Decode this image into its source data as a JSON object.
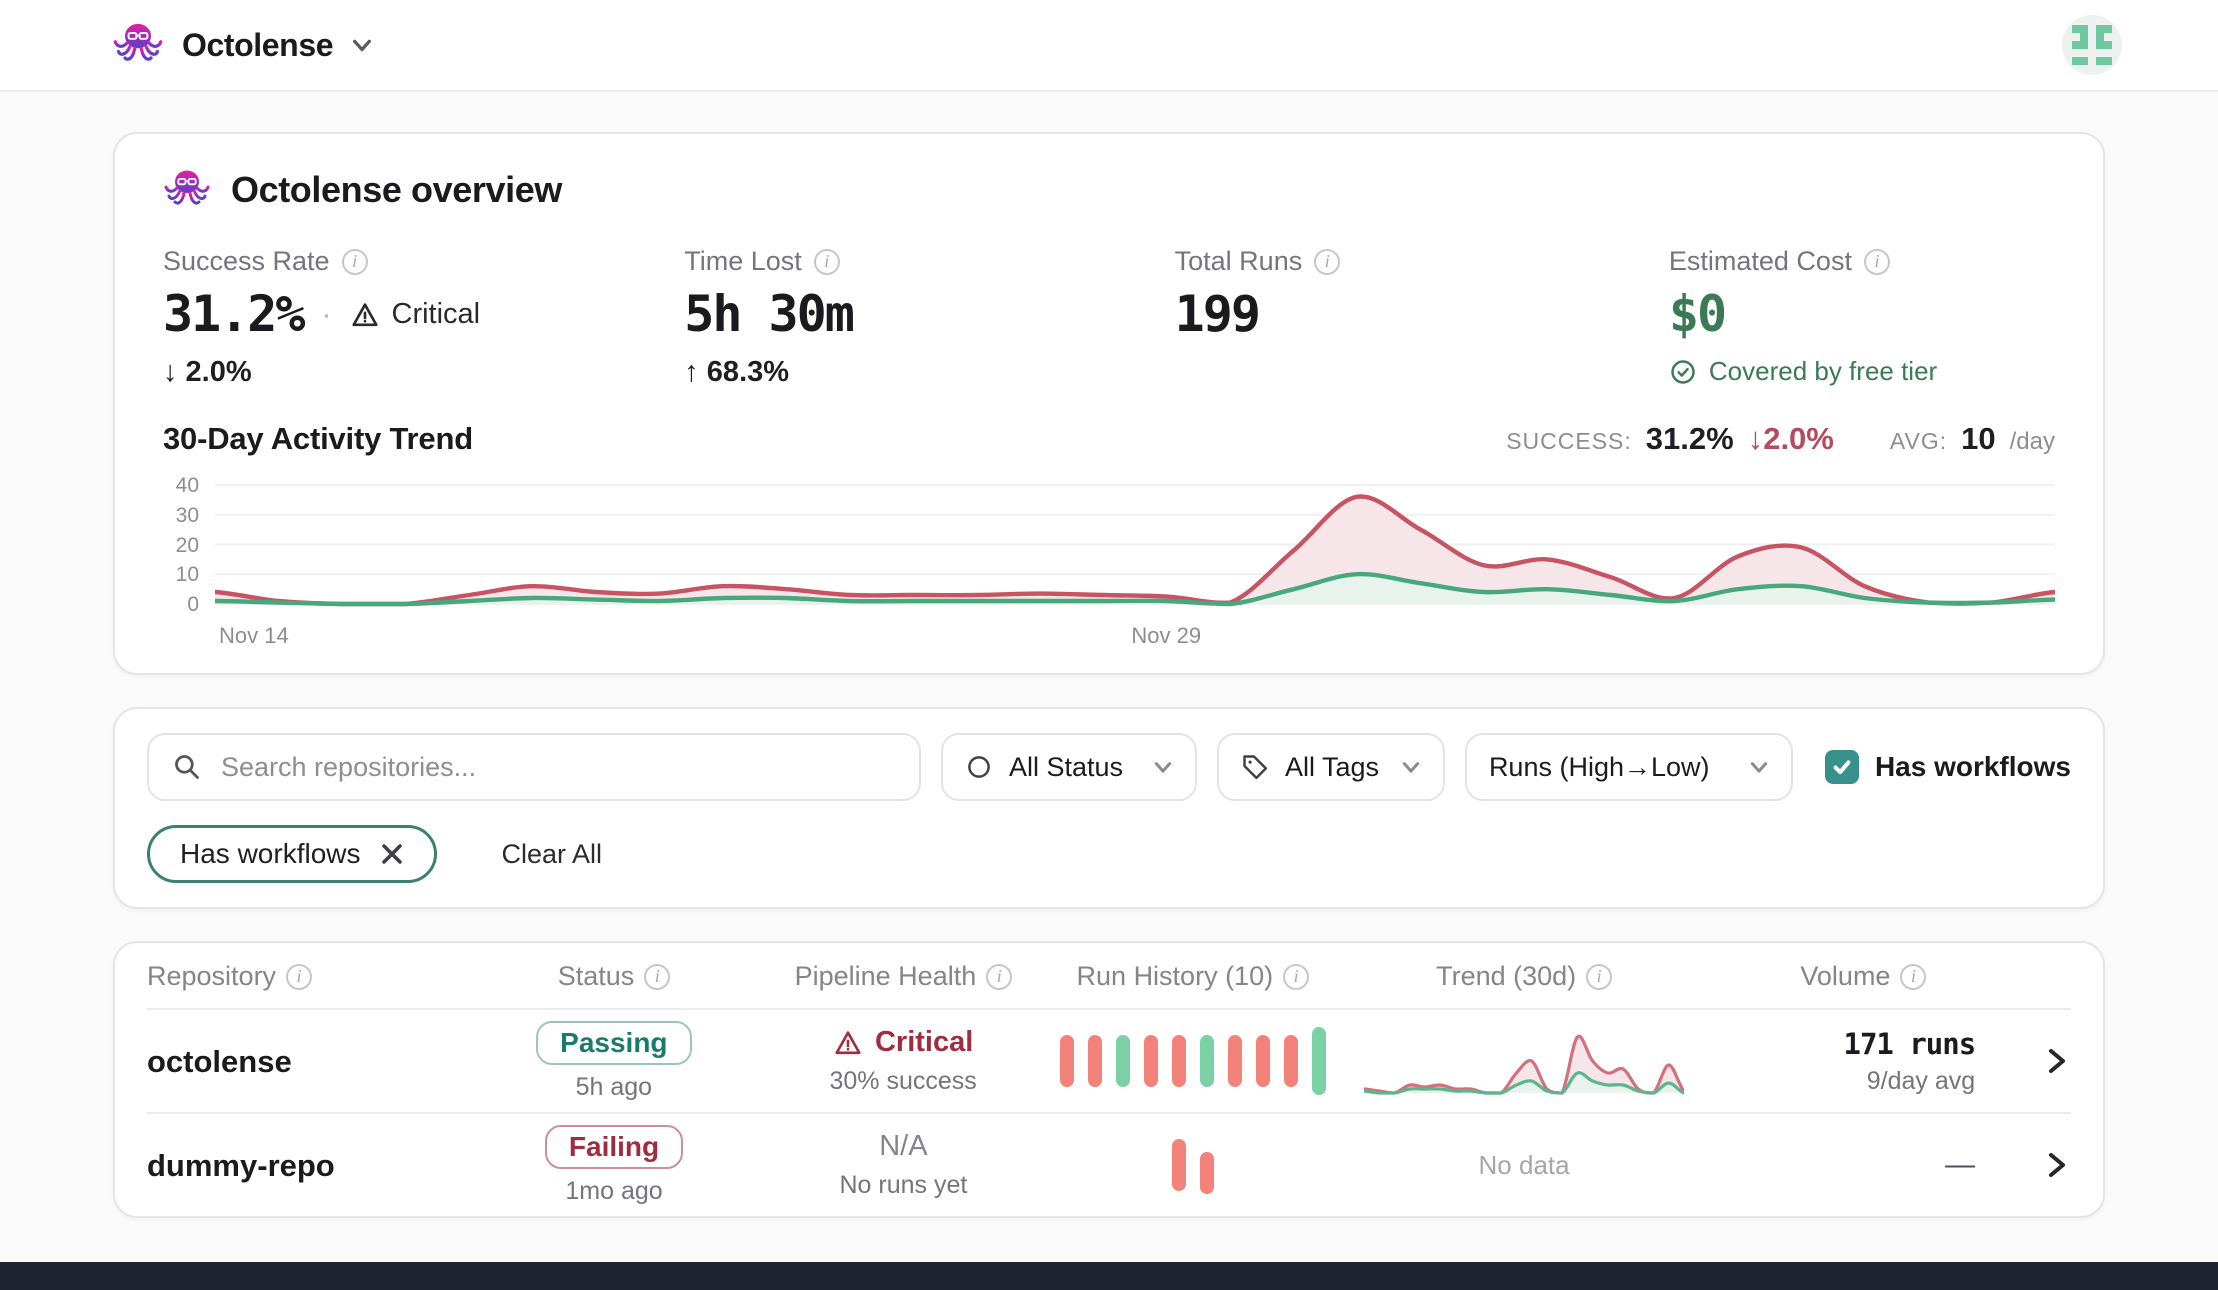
{
  "header": {
    "app_name": "Octolense",
    "avatar_pattern": [
      "11011",
      "01010",
      "11011",
      "00000",
      "11011"
    ]
  },
  "overview": {
    "title": "Octolense overview",
    "stats": [
      {
        "label": "Success Rate",
        "value": "31.2%",
        "separator": "·",
        "badge": "Critical",
        "delta": "↓ 2.0%"
      },
      {
        "label": "Time Lost",
        "value": "5h 30m",
        "delta": "↑ 68.3%"
      },
      {
        "label": "Total Runs",
        "value": "199"
      },
      {
        "label": "Estimated Cost",
        "value": "$0",
        "note": "Covered by free tier"
      }
    ],
    "trend_header": {
      "title": "30-Day Activity Trend",
      "success_label": "SUCCESS:",
      "success_value": "31.2%",
      "success_delta": "↓2.0%",
      "avg_label": "AVG:",
      "avg_value": "10",
      "avg_unit": "/day"
    }
  },
  "chart_data": [
    {
      "id": "main-trend",
      "type": "area",
      "title": "30-Day Activity Trend",
      "days": 30,
      "ylim": [
        0,
        40
      ],
      "y_ticks": [
        0,
        10,
        20,
        30,
        40
      ],
      "grid": true,
      "legend_position": "none",
      "x_tick_labels": [
        {
          "label": "Nov 14",
          "day": 0
        },
        {
          "label": "Nov 29",
          "day": 15
        }
      ],
      "series": [
        {
          "name": "failed-runs",
          "color": "#c65463",
          "fill": "#f7e6e9",
          "values": [
            4,
            1,
            0,
            0,
            3,
            6,
            4,
            3.5,
            6,
            5,
            3,
            3,
            3,
            3.5,
            3,
            2.5,
            0.5,
            18,
            36,
            25,
            13,
            15,
            9,
            2,
            16,
            19,
            6,
            0.5,
            0.5,
            4
          ]
        },
        {
          "name": "successful-runs",
          "color": "#47a87c",
          "fill": "#e7f3ec",
          "values": [
            1,
            0.5,
            0,
            0,
            1,
            2,
            1.5,
            1,
            2,
            2,
            1,
            1,
            1,
            1,
            1,
            1,
            0,
            5,
            10,
            7,
            4,
            5,
            3,
            1,
            5,
            6,
            2,
            0.5,
            0.5,
            1.5
          ]
        }
      ]
    },
    {
      "id": "octolense-sparkline",
      "type": "area",
      "title": "Trend (30d) sparkline for octolense row",
      "ylim": [
        0,
        16
      ],
      "grid": false,
      "series": [
        {
          "name": "failed-runs",
          "color": "#d3707c",
          "fill": "#f7e6e9",
          "values": [
            1,
            0.5,
            0,
            2,
            1.5,
            2,
            1,
            1,
            0,
            0,
            5,
            8,
            1,
            0,
            14,
            8,
            5,
            6,
            1,
            0,
            7,
            0.5
          ]
        },
        {
          "name": "successful-runs",
          "color": "#5cb58c",
          "fill": "#e7f3ec",
          "values": [
            0.5,
            0,
            0,
            1,
            1,
            1,
            0.5,
            0.5,
            0,
            0,
            2,
            3,
            0.5,
            0,
            5,
            3,
            2,
            2,
            0.5,
            0,
            2.5,
            0
          ]
        }
      ]
    }
  ],
  "filters": {
    "search_placeholder": "Search repositories...",
    "status_select": "All Status",
    "tags_select": "All Tags",
    "sort_select": "Runs (High→Low)",
    "has_workflows_label": "Has workflows",
    "active_chip": "Has workflows",
    "clear_all": "Clear All"
  },
  "table": {
    "columns": [
      "Repository",
      "Status",
      "Pipeline Health",
      "Run History (10)",
      "Trend (30d)",
      "Volume"
    ],
    "rows": [
      {
        "name": "octolense",
        "status": "Passing",
        "status_time": "5h ago",
        "health": "Critical",
        "health_sub": "30% success",
        "run_history": [
          {
            "status": "fail"
          },
          {
            "status": "fail"
          },
          {
            "status": "success"
          },
          {
            "status": "fail"
          },
          {
            "status": "fail"
          },
          {
            "status": "success"
          },
          {
            "status": "fail"
          },
          {
            "status": "fail"
          },
          {
            "status": "fail"
          },
          {
            "status": "success",
            "latest": true
          }
        ],
        "volume": "171 runs",
        "volume_sub": "9/day avg"
      },
      {
        "name": "dummy-repo",
        "status": "Failing",
        "status_time": "1mo ago",
        "health": "N/A",
        "health_sub": "No runs yet",
        "run_history": [
          {
            "status": "fail"
          },
          {
            "status": "fail",
            "offset": true
          }
        ],
        "trend_empty": "No data",
        "volume": "—"
      }
    ]
  },
  "colors": {
    "accent_teal": "#35918a",
    "critical_red": "#9f2d3f",
    "cost_green": "#3b7a54",
    "chart_red": "#c65463",
    "chart_green": "#47a87c",
    "bar_red": "#f3827b",
    "bar_green": "#7cd0a5"
  }
}
